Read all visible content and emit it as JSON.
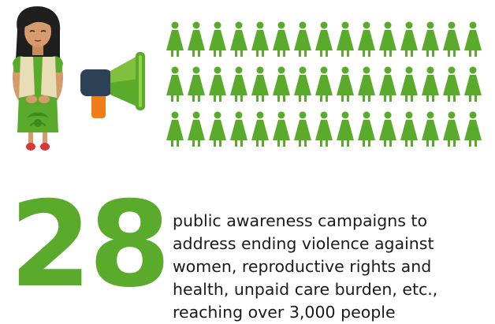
{
  "stat": {
    "number": "28",
    "description": "public awareness campaigns to address ending violence against women, reproductive rights and health, unpaid care burden, etc., reaching over 3,000 people"
  },
  "figures": {
    "rows": 3,
    "per_row": 15,
    "icon": "woman-figure-icon",
    "color": "#5aaa2c"
  },
  "illustration": {
    "person_icon": "woman-character-illustration",
    "megaphone_icon": "megaphone-icon",
    "brand_green": "#5aaa2c"
  }
}
